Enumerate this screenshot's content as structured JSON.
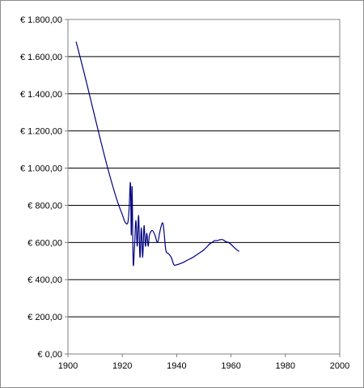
{
  "chart_data": {
    "type": "line",
    "title": "",
    "xlabel": "",
    "ylabel": "",
    "xlim": [
      1900,
      2000
    ],
    "ylim": [
      0,
      1800
    ],
    "grid": "horizontal",
    "legend": "none",
    "x_ticks": [
      "1900",
      "1920",
      "1940",
      "1960",
      "1980",
      "2000"
    ],
    "y_ticks": [
      "€ 0,00",
      "€ 200,00",
      "€ 400,00",
      "€ 600,00",
      "€ 800,00",
      "€ 1.000,00",
      "€ 1.200,00",
      "€ 1.400,00",
      "€ 1.600,00",
      "€ 1.800,00"
    ],
    "series": [
      {
        "color": "#000080",
        "x": [
          1903,
          1906,
          1909,
          1912,
          1915,
          1918,
          1920,
          1921,
          1922,
          1922.5,
          1923,
          1923.3,
          1923.6,
          1924,
          1924.5,
          1925,
          1925.5,
          1926,
          1926.5,
          1927,
          1927.5,
          1928,
          1928.5,
          1929,
          1929.5,
          1930,
          1931,
          1932,
          1933,
          1934,
          1935,
          1936,
          1937,
          1938,
          1939,
          1940,
          1942,
          1944,
          1946,
          1948,
          1950,
          1952,
          1953,
          1954,
          1955,
          1956,
          1957,
          1958,
          1959,
          1960,
          1961,
          1962,
          1963
        ],
        "y": [
          1680,
          1510,
          1330,
          1150,
          980,
          830,
          750,
          710,
          705,
          780,
          920,
          640,
          900,
          490,
          580,
          720,
          580,
          745,
          520,
          680,
          520,
          690,
          580,
          650,
          580,
          640,
          665,
          640,
          600,
          670,
          700,
          560,
          540,
          520,
          480,
          480,
          490,
          505,
          520,
          540,
          560,
          590,
          600,
          610,
          610,
          615,
          615,
          605,
          600,
          590,
          575,
          562,
          552
        ]
      }
    ]
  }
}
